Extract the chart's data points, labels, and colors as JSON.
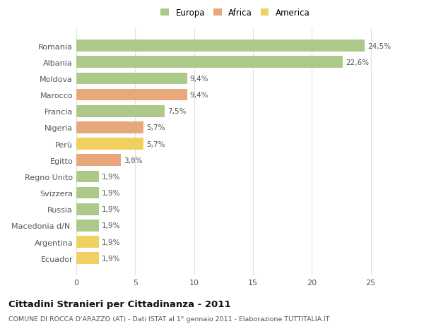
{
  "categories": [
    "Romania",
    "Albania",
    "Moldova",
    "Marocco",
    "Francia",
    "Nigeria",
    "Perù",
    "Egitto",
    "Regno Unito",
    "Svizzera",
    "Russia",
    "Macedonia d/N.",
    "Argentina",
    "Ecuador"
  ],
  "values": [
    24.5,
    22.6,
    9.4,
    9.4,
    7.5,
    5.7,
    5.7,
    3.8,
    1.9,
    1.9,
    1.9,
    1.9,
    1.9,
    1.9
  ],
  "labels": [
    "24,5%",
    "22,6%",
    "9,4%",
    "9,4%",
    "7,5%",
    "5,7%",
    "5,7%",
    "3,8%",
    "1,9%",
    "1,9%",
    "1,9%",
    "1,9%",
    "1,9%",
    "1,9%"
  ],
  "colors": [
    "#adc98a",
    "#adc98a",
    "#adc98a",
    "#e8a87c",
    "#adc98a",
    "#e8a87c",
    "#f0d060",
    "#e8a87c",
    "#adc98a",
    "#adc98a",
    "#adc98a",
    "#adc98a",
    "#f0d060",
    "#f0d060"
  ],
  "legend_labels": [
    "Europa",
    "Africa",
    "America"
  ],
  "legend_colors": [
    "#adc98a",
    "#e8a87c",
    "#f0d060"
  ],
  "title": "Cittadini Stranieri per Cittadinanza - 2011",
  "subtitle": "COMUNE DI ROCCA D'ARAZZO (AT) - Dati ISTAT al 1° gennaio 2011 - Elaborazione TUTTITALIA.IT",
  "xlim": [
    0,
    27
  ],
  "xticks": [
    0,
    5,
    10,
    15,
    20,
    25
  ],
  "bg_color": "#ffffff",
  "grid_color": "#e0e0e0",
  "bar_height": 0.72
}
